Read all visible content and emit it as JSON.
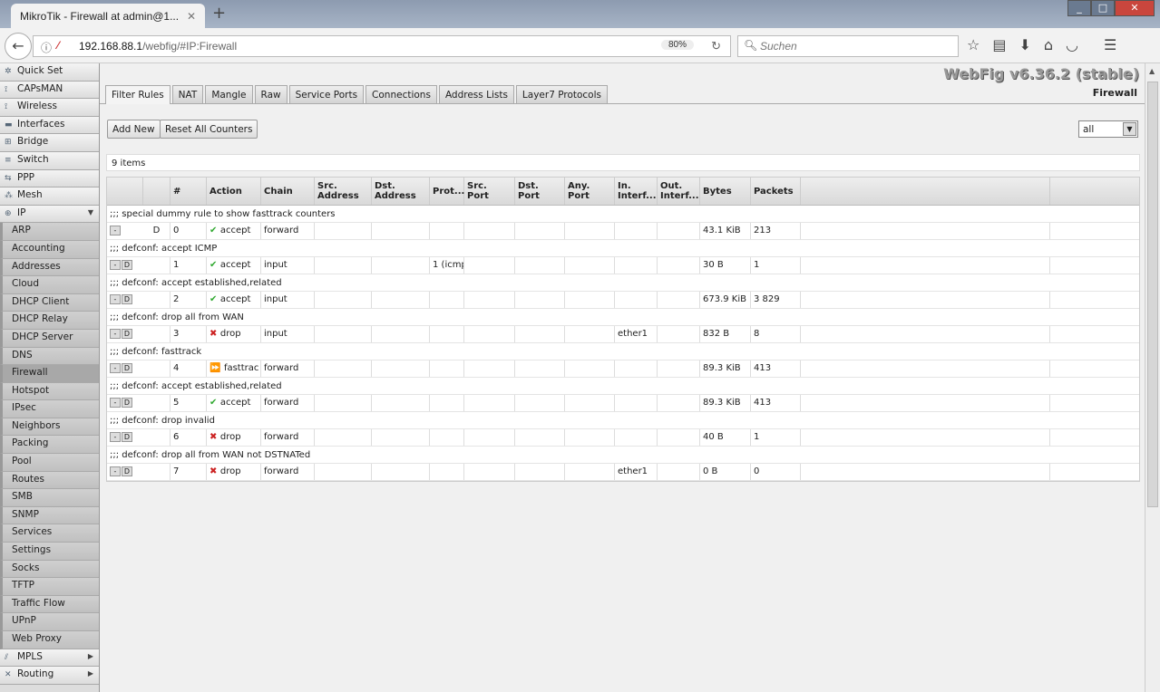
{
  "browser": {
    "tab_title": "MikroTik - Firewall at admin@1...",
    "url_host": "192.168.88.1",
    "url_path": "/webfig/#IP:Firewall",
    "zoom": "80%",
    "search_placeholder": "Suchen"
  },
  "sidebar": {
    "items": [
      {
        "label": "Quick Set",
        "icon": "wand-icon"
      },
      {
        "label": "CAPsMAN",
        "icon": "antenna-icon"
      },
      {
        "label": "Wireless",
        "icon": "antenna-icon"
      },
      {
        "label": "Interfaces",
        "icon": "interfaces-icon"
      },
      {
        "label": "Bridge",
        "icon": "bridge-icon"
      },
      {
        "label": "Switch",
        "icon": "switch-icon"
      },
      {
        "label": "PPP",
        "icon": "ppp-icon"
      },
      {
        "label": "Mesh",
        "icon": "mesh-icon"
      },
      {
        "label": "IP",
        "icon": "ip-icon",
        "expanded": true
      }
    ],
    "ip_sub": [
      "ARP",
      "Accounting",
      "Addresses",
      "Cloud",
      "DHCP Client",
      "DHCP Relay",
      "DHCP Server",
      "DNS",
      "Firewall",
      "Hotspot",
      "IPsec",
      "Neighbors",
      "Packing",
      "Pool",
      "Routes",
      "SMB",
      "SNMP",
      "Services",
      "Settings",
      "Socks",
      "TFTP",
      "Traffic Flow",
      "UPnP",
      "Web Proxy"
    ],
    "active": "Firewall",
    "after": [
      {
        "label": "MPLS",
        "icon": "mpls-icon"
      },
      {
        "label": "Routing",
        "icon": "routing-icon"
      }
    ]
  },
  "header": {
    "title": "WebFig v6.36.2 (stable)",
    "subtitle": "Firewall"
  },
  "tabs": [
    "Filter Rules",
    "NAT",
    "Mangle",
    "Raw",
    "Service Ports",
    "Connections",
    "Address Lists",
    "Layer7 Protocols"
  ],
  "toolbar": {
    "add_new": "Add New",
    "reset": "Reset All Counters",
    "filter": "all"
  },
  "count": "9 items",
  "table": {
    "columns": [
      "",
      "",
      "#",
      "Action",
      "Chain",
      "Src. Address",
      "Dst. Address",
      "Prot...",
      "Src. Port",
      "Dst. Port",
      "Any. Port",
      "In. Interf...",
      "Out. Interf...",
      "Bytes",
      "Packets",
      ""
    ],
    "rows": [
      {
        "comment": ";;; special dummy rule to show fasttrack counters",
        "flag": "D",
        "dynamic": true,
        "num": "0",
        "action": "accept",
        "chain": "forward",
        "proto": "",
        "in": "",
        "bytes": "43.1 KiB",
        "packets": "213"
      },
      {
        "comment": ";;; defconf: accept ICMP",
        "flag": "D",
        "num": "1",
        "action": "accept",
        "chain": "input",
        "proto": "1 (icmp",
        "in": "",
        "bytes": "30 B",
        "packets": "1"
      },
      {
        "comment": ";;; defconf: accept established,related",
        "flag": "D",
        "num": "2",
        "action": "accept",
        "chain": "input",
        "proto": "",
        "in": "",
        "bytes": "673.9 KiB",
        "packets": "3 829"
      },
      {
        "comment": ";;; defconf: drop all from WAN",
        "flag": "D",
        "num": "3",
        "action": "drop",
        "chain": "input",
        "proto": "",
        "in": "ether1",
        "bytes": "832 B",
        "packets": "8"
      },
      {
        "comment": ";;; defconf: fasttrack",
        "flag": "D",
        "num": "4",
        "action": "fasttrac",
        "chain": "forward",
        "proto": "",
        "in": "",
        "bytes": "89.3 KiB",
        "packets": "413"
      },
      {
        "comment": ";;; defconf: accept established,related",
        "flag": "D",
        "num": "5",
        "action": "accept",
        "chain": "forward",
        "proto": "",
        "in": "",
        "bytes": "89.3 KiB",
        "packets": "413"
      },
      {
        "comment": ";;; defconf: drop invalid",
        "flag": "D",
        "num": "6",
        "action": "drop",
        "chain": "forward",
        "proto": "",
        "in": "",
        "bytes": "40 B",
        "packets": "1"
      },
      {
        "comment": ";;; defconf: drop all from WAN not DSTNATed",
        "flag": "D",
        "num": "7",
        "action": "drop",
        "chain": "forward",
        "proto": "",
        "in": "ether1",
        "bytes": "0 B",
        "packets": "0"
      }
    ]
  }
}
